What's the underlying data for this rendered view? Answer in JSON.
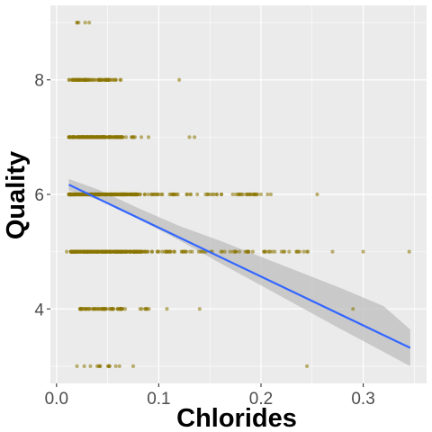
{
  "chart_data": {
    "type": "scatter",
    "title": "",
    "xlabel": "Chlorides",
    "ylabel": "Quality",
    "xlim": [
      -0.006,
      0.362
    ],
    "ylim": [
      2.7,
      9.3
    ],
    "x_ticks": [
      0.0,
      0.1,
      0.2,
      0.3
    ],
    "x_tick_labels": [
      "0.0",
      "0.1",
      "0.2",
      "0.3"
    ],
    "y_ticks": [
      4,
      6,
      8
    ],
    "y_tick_labels": [
      "4",
      "6",
      "8"
    ],
    "grid": true,
    "legend": "none",
    "colors": {
      "panel": "#ebebeb",
      "grid": "#ffffff",
      "points": "#8b7500",
      "trend_line": "#3366ff",
      "confidence_band": "#bdbdbd"
    },
    "series": [
      {
        "points": [
          {
            "x": 0.02,
            "y": 9
          },
          {
            "x": 0.028,
            "y": 9
          },
          {
            "x": 0.032,
            "y": 9
          },
          {
            "x": 0.12,
            "y": 8
          },
          {
            "x": 0.13,
            "y": 7
          },
          {
            "x": 0.135,
            "y": 7
          },
          {
            "x": 0.01,
            "y": 5
          },
          {
            "x": 0.2,
            "y": 6
          },
          {
            "x": 0.255,
            "y": 6
          },
          {
            "x": 0.27,
            "y": 5
          },
          {
            "x": 0.3,
            "y": 5
          },
          {
            "x": 0.345,
            "y": 5
          },
          {
            "x": 0.245,
            "y": 5
          },
          {
            "x": 0.29,
            "y": 4
          },
          {
            "x": 0.245,
            "y": 3
          },
          {
            "x": 0.14,
            "y": 4
          },
          {
            "x": 0.108,
            "y": 4
          },
          {
            "x": 0.02,
            "y": 3
          },
          {
            "x": 0.075,
            "y": 3
          },
          {
            "x": 0.083,
            "y": 7
          },
          {
            "x": 0.09,
            "y": 7
          },
          {
            "x": 0.162,
            "y": 5
          },
          {
            "x": 0.178,
            "y": 6
          },
          {
            "x": 0.19,
            "y": 6
          }
        ],
        "clusters": [
          {
            "y": 9,
            "x_range": [
              0.019,
              0.023
            ],
            "count": 2
          },
          {
            "y": 8,
            "x_range": [
              0.012,
              0.058
            ],
            "count": 70
          },
          {
            "y": 8,
            "x_range": [
              0.058,
              0.065
            ],
            "count": 3
          },
          {
            "y": 7,
            "x_range": [
              0.012,
              0.064
            ],
            "count": 160
          },
          {
            "y": 7,
            "x_range": [
              0.064,
              0.078
            ],
            "count": 8
          },
          {
            "y": 6,
            "x_range": [
              0.012,
              0.08
            ],
            "count": 260
          },
          {
            "y": 6,
            "x_range": [
              0.08,
              0.21
            ],
            "count": 60
          },
          {
            "y": 5,
            "x_range": [
              0.014,
              0.085
            ],
            "count": 260
          },
          {
            "y": 5,
            "x_range": [
              0.085,
              0.25
            ],
            "count": 70
          },
          {
            "y": 4,
            "x_range": [
              0.022,
              0.065
            ],
            "count": 60
          },
          {
            "y": 4,
            "x_range": [
              0.065,
              0.1
            ],
            "count": 8
          },
          {
            "y": 3,
            "x_range": [
              0.025,
              0.065
            ],
            "count": 12
          }
        ]
      }
    ],
    "trend_line": {
      "x": [
        0.012,
        0.346
      ],
      "y": [
        6.17,
        3.32
      ],
      "confidence_band": {
        "x": [
          0.012,
          0.04,
          0.08,
          0.12,
          0.16,
          0.2,
          0.24,
          0.28,
          0.32,
          0.346
        ],
        "lower": [
          6.07,
          5.91,
          5.57,
          5.2,
          4.8,
          4.41,
          4.02,
          3.63,
          3.25,
          3.0
        ],
        "upper": [
          6.27,
          6.09,
          5.76,
          5.45,
          5.19,
          4.91,
          4.63,
          4.35,
          4.05,
          3.64
        ]
      }
    }
  }
}
